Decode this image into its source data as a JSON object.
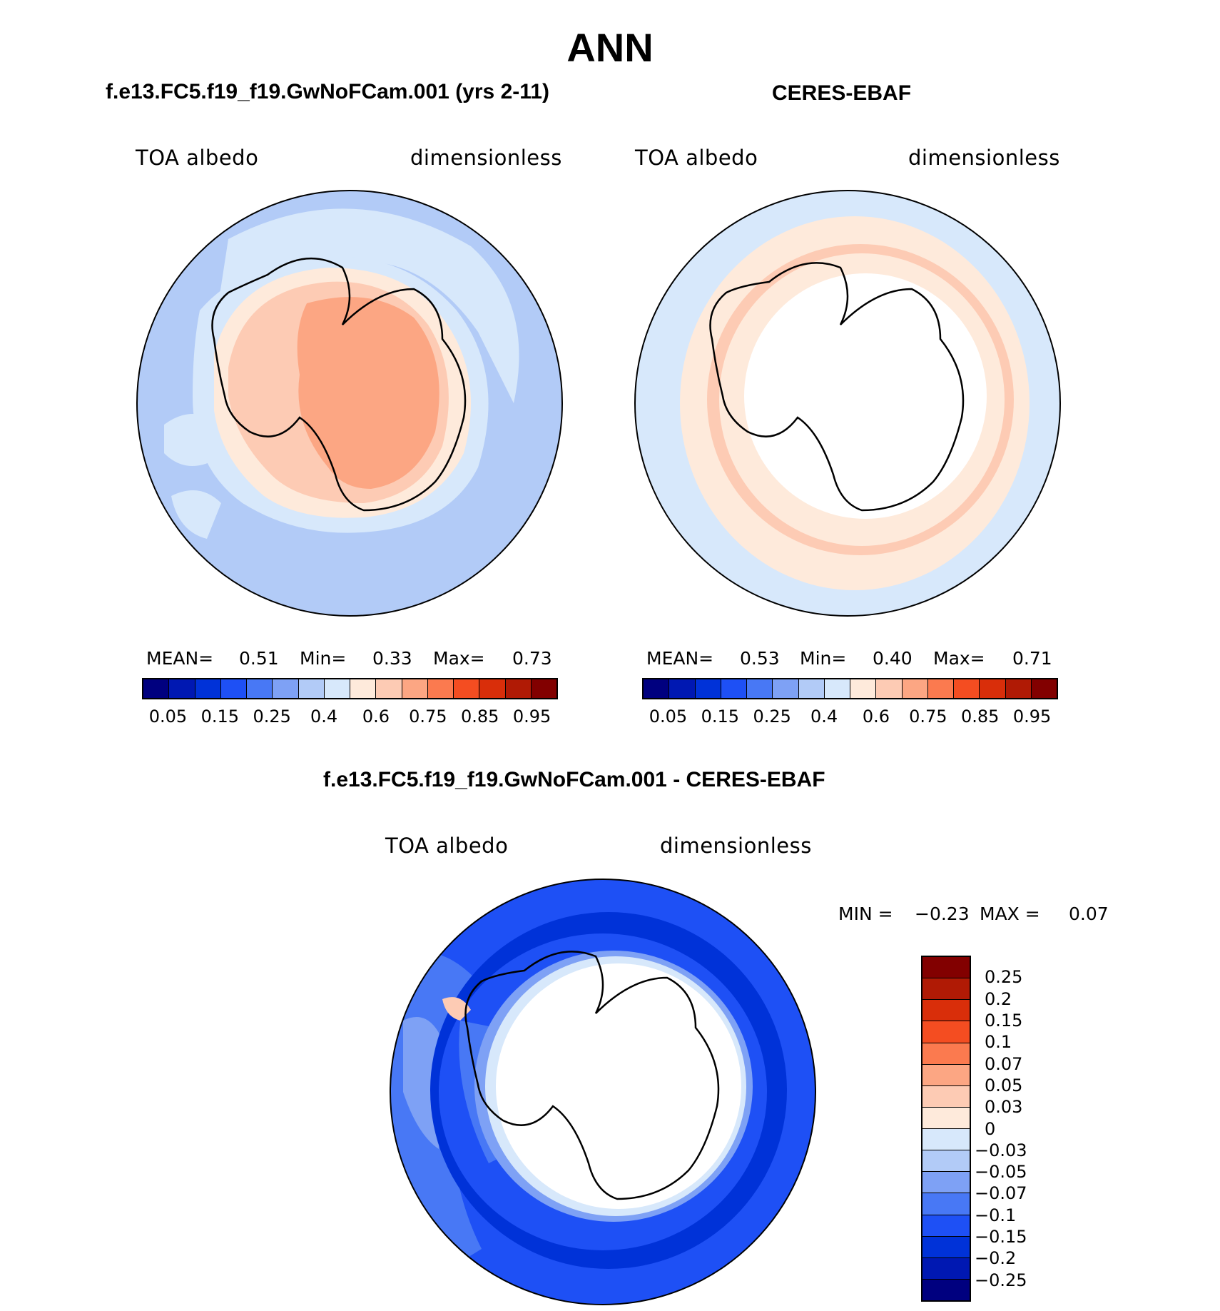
{
  "figure": {
    "title": "ANN"
  },
  "panels": {
    "model": {
      "title": "f.e13.FC5.f19_f19.GwNoFCam.001 (yrs 2-11)",
      "variable": "TOA albedo",
      "units": "dimensionless",
      "stats": {
        "mean_label": "MEAN=",
        "mean": "0.51",
        "min_label": "Min=",
        "min": "0.33",
        "max_label": "Max=",
        "max": "0.73"
      }
    },
    "obs": {
      "title": "CERES-EBAF",
      "variable": "TOA albedo",
      "units": "dimensionless",
      "stats": {
        "mean_label": "MEAN=",
        "mean": "0.53",
        "min_label": "Min=",
        "min": "0.40",
        "max_label": "Max=",
        "max": "0.71"
      }
    },
    "diff": {
      "title": "f.e13.FC5.f19_f19.GwNoFCam.001 - CERES-EBAF",
      "variable": "TOA albedo",
      "units": "dimensionless",
      "stats": {
        "min_label": "MIN =",
        "min": "−0.23",
        "max_label": "MAX =",
        "max": "0.07"
      }
    }
  },
  "colorbars": {
    "abs": {
      "colors": [
        "#00007f",
        "#0018b2",
        "#0032d8",
        "#1e50f5",
        "#4878f5",
        "#7ea1f5",
        "#b2cbf7",
        "#d7e8fb",
        "#feeadb",
        "#fdcbb4",
        "#fca683",
        "#fb7a4f",
        "#f44d21",
        "#d92e0a",
        "#b01a05",
        "#820000"
      ],
      "labels": [
        "0.05",
        "0.15",
        "0.25",
        "0.4",
        "0.6",
        "0.75",
        "0.85",
        "0.95"
      ]
    },
    "diff": {
      "colors": [
        "#820000",
        "#b01a05",
        "#d92e0a",
        "#f44d21",
        "#fb7a4f",
        "#fca683",
        "#fdcbb4",
        "#feeadb",
        "#d7e8fb",
        "#b2cbf7",
        "#7ea1f5",
        "#4878f5",
        "#1e50f5",
        "#0032d8",
        "#0018b2",
        "#00007f"
      ],
      "labels": [
        "0.25",
        "0.2",
        "0.15",
        "0.1",
        "0.07",
        "0.05",
        "0.03",
        "0",
        "−0.03",
        "−0.05",
        "−0.07",
        "−0.1",
        "−0.15",
        "−0.2",
        "−0.25"
      ]
    }
  }
}
